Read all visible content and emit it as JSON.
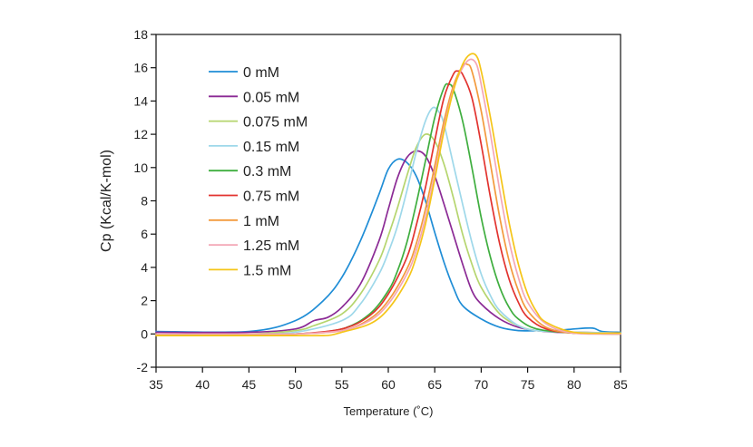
{
  "chart_data": {
    "type": "line",
    "title": "",
    "xlabel": "Temperature (˚C)",
    "ylabel": "Cp (Kcal/K-mol)",
    "xlim": [
      35,
      85
    ],
    "ylim": [
      -2,
      18
    ],
    "xticks": [
      35,
      40,
      45,
      50,
      55,
      60,
      65,
      70,
      75,
      80,
      85
    ],
    "yticks": [
      -2,
      0,
      2,
      4,
      6,
      8,
      10,
      12,
      14,
      16,
      18
    ],
    "grid": false,
    "legend_position": "top-left",
    "series": [
      {
        "name": "0 mM",
        "color": "#1f8dd6",
        "x": [
          35,
          45,
          50,
          53,
          55,
          57,
          59,
          60,
          61,
          62,
          63,
          64,
          65,
          66,
          67,
          68,
          70,
          72,
          74,
          76,
          78,
          80,
          82,
          83,
          85
        ],
        "y": [
          0.15,
          0.15,
          0.8,
          2.0,
          3.4,
          5.6,
          8.4,
          9.9,
          10.5,
          10.3,
          9.5,
          8.0,
          6.1,
          4.3,
          2.8,
          1.7,
          0.9,
          0.4,
          0.2,
          0.2,
          0.2,
          0.3,
          0.35,
          0.15,
          0.1
        ]
      },
      {
        "name": "0.05 mM",
        "color": "#8b2a95",
        "x": [
          35,
          45,
          50,
          52,
          53.5,
          55,
          57,
          59,
          60,
          61,
          62,
          63,
          64,
          65,
          66,
          67,
          68,
          69,
          70,
          72,
          74,
          76,
          78,
          80,
          85
        ],
        "y": [
          0.1,
          0.1,
          0.3,
          0.8,
          1.0,
          1.6,
          3.0,
          5.6,
          7.5,
          9.4,
          10.6,
          11.0,
          10.7,
          9.5,
          7.8,
          6.0,
          4.2,
          2.6,
          1.8,
          0.9,
          0.4,
          0.2,
          0.1,
          0.1,
          0.05
        ]
      },
      {
        "name": "0.075 mM",
        "color": "#b5d56e",
        "x": [
          35,
          45,
          50,
          52,
          55,
          57,
          59,
          60,
          61,
          62,
          63,
          64,
          65,
          66,
          67,
          68,
          69,
          70,
          72,
          74,
          76,
          80,
          85
        ],
        "y": [
          0.0,
          0.0,
          0.2,
          0.5,
          1.2,
          2.4,
          4.4,
          5.9,
          7.6,
          9.5,
          11.2,
          12.0,
          11.6,
          10.2,
          8.2,
          6.0,
          4.2,
          2.8,
          1.2,
          0.5,
          0.2,
          0.1,
          0.05
        ]
      },
      {
        "name": "0.15 mM",
        "color": "#9ed8ea",
        "x": [
          35,
          45,
          50,
          55,
          57,
          59,
          60,
          61,
          62,
          63,
          64,
          64.8,
          65.5,
          66,
          67,
          68,
          69,
          70,
          71,
          72,
          74,
          76,
          80,
          85
        ],
        "y": [
          0.0,
          0.0,
          0.1,
          0.8,
          1.8,
          3.6,
          4.9,
          6.5,
          8.6,
          10.9,
          12.8,
          13.6,
          13.3,
          12.6,
          10.2,
          7.8,
          5.5,
          3.6,
          2.3,
          1.4,
          0.5,
          0.2,
          0.1,
          0.05
        ]
      },
      {
        "name": "0.3 mM",
        "color": "#3fae3f",
        "x": [
          35,
          45,
          50,
          55,
          58,
          60,
          61,
          62,
          63,
          64,
          65,
          66,
          66.5,
          67,
          68,
          69,
          70,
          71,
          72,
          73,
          74,
          76,
          80,
          85
        ],
        "y": [
          0.0,
          0.0,
          0.0,
          0.3,
          1.2,
          2.6,
          3.8,
          5.5,
          7.8,
          10.4,
          13.0,
          14.8,
          15.0,
          14.7,
          12.8,
          10.0,
          7.0,
          4.6,
          2.8,
          1.6,
          0.9,
          0.3,
          0.05,
          0.0
        ]
      },
      {
        "name": "0.75 mM",
        "color": "#e2332f",
        "x": [
          35,
          45,
          50,
          55,
          58,
          60,
          62,
          63,
          64,
          65,
          66,
          67,
          67.5,
          68,
          69,
          70,
          71,
          72,
          73,
          74,
          75,
          77,
          80,
          85
        ],
        "y": [
          0.0,
          0.0,
          0.0,
          0.3,
          1.1,
          2.4,
          4.6,
          6.5,
          8.8,
          11.6,
          14.2,
          15.6,
          15.8,
          15.6,
          14.2,
          11.4,
          8.2,
          5.4,
          3.3,
          1.9,
          1.0,
          0.3,
          0.05,
          0.0
        ]
      },
      {
        "name": "1 mM",
        "color": "#f39a3c",
        "x": [
          35,
          45,
          50,
          55,
          58,
          60,
          62,
          63,
          64,
          65,
          66,
          67,
          68,
          68.5,
          69,
          70,
          71,
          72,
          73,
          74,
          75,
          77,
          80,
          85
        ],
        "y": [
          0.0,
          0.0,
          0.0,
          0.2,
          0.9,
          2.0,
          3.9,
          5.4,
          7.5,
          10.1,
          12.8,
          14.9,
          16.1,
          16.2,
          15.8,
          13.4,
          10.2,
          7.0,
          4.4,
          2.6,
          1.4,
          0.4,
          0.05,
          0.0
        ]
      },
      {
        "name": "1.25 mM",
        "color": "#f4a7b6",
        "x": [
          35,
          45,
          50,
          55,
          58,
          60,
          62,
          63,
          64,
          65,
          66,
          67,
          68,
          68.8,
          69.5,
          70,
          71,
          72,
          73,
          74,
          75,
          77,
          80,
          85
        ],
        "y": [
          0.0,
          0.0,
          0.0,
          0.2,
          0.8,
          1.8,
          3.6,
          5.0,
          7.0,
          9.6,
          12.4,
          14.7,
          16.0,
          16.5,
          16.2,
          15.0,
          12.0,
          8.6,
          5.6,
          3.4,
          1.9,
          0.6,
          0.05,
          0.0
        ]
      },
      {
        "name": "1.5 mM",
        "color": "#f5c518",
        "x": [
          35,
          45,
          50,
          53,
          54,
          55,
          58,
          60,
          62,
          63,
          64,
          65,
          66,
          67,
          68,
          68.8,
          69.5,
          70,
          71,
          72,
          73,
          74,
          75,
          76,
          77,
          80,
          85
        ],
        "y": [
          -0.1,
          -0.1,
          -0.1,
          -0.1,
          -0.05,
          0.1,
          0.6,
          1.5,
          3.2,
          4.6,
          6.6,
          9.3,
          12.2,
          14.6,
          16.2,
          16.8,
          16.7,
          15.8,
          13.0,
          9.8,
          6.7,
          4.2,
          2.4,
          1.3,
          0.7,
          0.1,
          0.05
        ]
      }
    ]
  }
}
